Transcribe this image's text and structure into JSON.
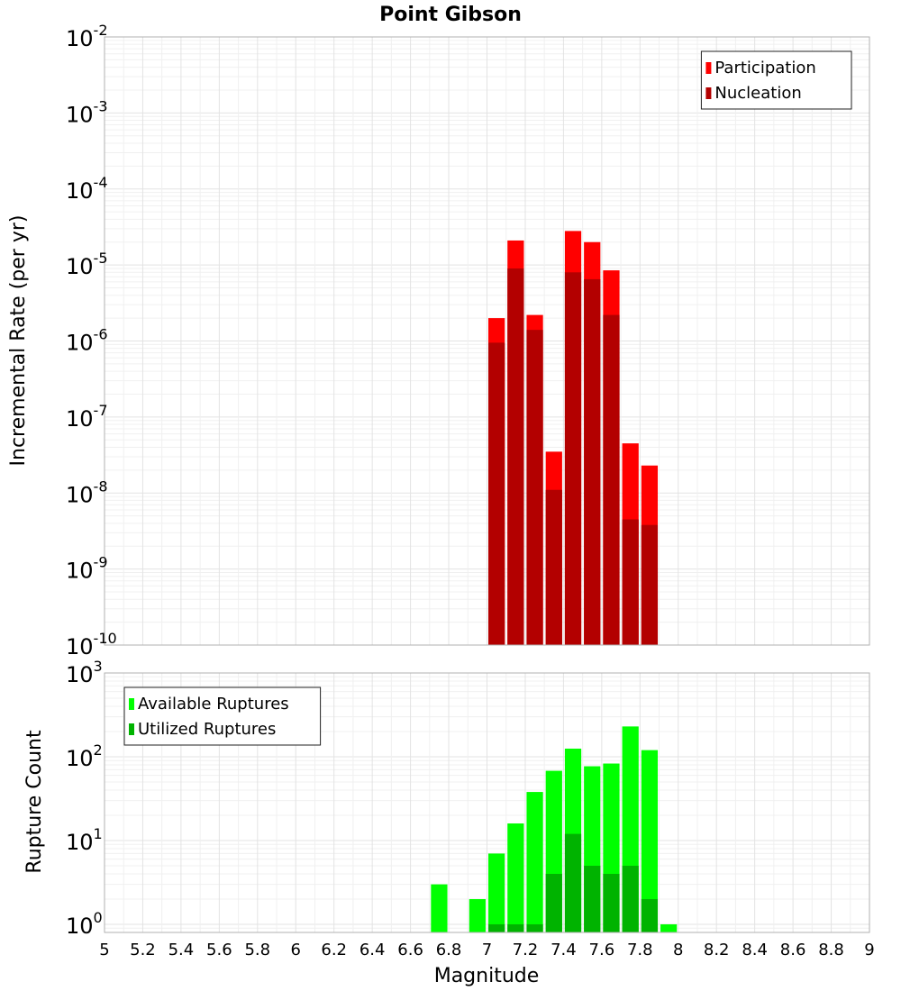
{
  "chart_data": [
    {
      "panel": "top",
      "type": "bar",
      "title": "Point Gibson",
      "xlabel": "",
      "ylabel": "Incremental Rate (per yr)",
      "yscale": "log",
      "xlim": [
        5,
        9
      ],
      "ylim": [
        1e-10,
        0.01
      ],
      "ytick_bases": [
        "10",
        "10",
        "10",
        "10",
        "10",
        "10",
        "10",
        "10",
        "10"
      ],
      "ytick_exponents": [
        "-10",
        "-9",
        "-8",
        "-7",
        "-6",
        "-5",
        "-4",
        "-3",
        "-2"
      ],
      "grid": true,
      "legend_position": "top-right",
      "categories": [
        7.05,
        7.15,
        7.25,
        7.35,
        7.45,
        7.55,
        7.65,
        7.75,
        7.85
      ],
      "series": [
        {
          "name": "Participation",
          "color": "#ff0000",
          "values": [
            2e-06,
            2.1e-05,
            2.2e-06,
            3.5e-08,
            2.8e-05,
            2e-05,
            8.5e-06,
            4.5e-08,
            2.3e-08
          ]
        },
        {
          "name": "Nucleation",
          "color": "#b30000",
          "values": [
            9.5e-07,
            9e-06,
            1.4e-06,
            1.1e-08,
            8e-06,
            6.5e-06,
            2.2e-06,
            4.5e-09,
            3.8e-09
          ]
        }
      ]
    },
    {
      "panel": "bottom",
      "type": "bar",
      "title": "",
      "xlabel": "Magnitude",
      "ylabel": "Rupture Count",
      "yscale": "log",
      "xlim": [
        5,
        9
      ],
      "ylim": [
        0.8,
        1000
      ],
      "ytick_bases": [
        "10",
        "10",
        "10",
        "10"
      ],
      "ytick_exponents": [
        "0",
        "1",
        "2",
        "3"
      ],
      "xtick_labels": [
        "5",
        "5.2",
        "5.4",
        "5.6",
        "5.8",
        "6",
        "6.2",
        "6.4",
        "6.6",
        "6.8",
        "7",
        "7.2",
        "7.4",
        "7.6",
        "7.8",
        "8",
        "8.2",
        "8.4",
        "8.6",
        "8.8",
        "9"
      ],
      "grid": true,
      "legend_position": "top-left",
      "categories": [
        6.75,
        6.85,
        6.95,
        7.05,
        7.15,
        7.25,
        7.35,
        7.45,
        7.55,
        7.65,
        7.75,
        7.85,
        7.95
      ],
      "series": [
        {
          "name": "Available Ruptures",
          "color": "#00ff00",
          "values": [
            3,
            0,
            2,
            7,
            16,
            38,
            68,
            125,
            77,
            83,
            230,
            120,
            1
          ]
        },
        {
          "name": "Utilized Ruptures",
          "color": "#00b300",
          "values": [
            0,
            0,
            0,
            1,
            1,
            1,
            4,
            12,
            5,
            4,
            5,
            2,
            0
          ]
        }
      ]
    }
  ]
}
